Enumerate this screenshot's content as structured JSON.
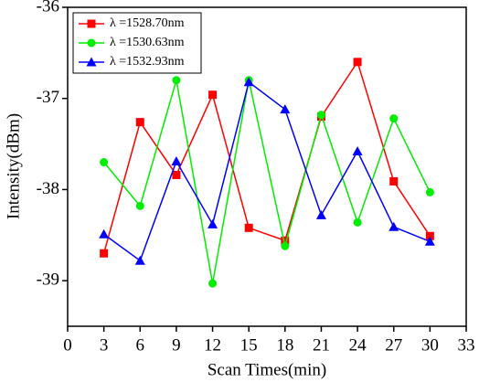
{
  "chart_data": {
    "type": "line",
    "xlabel": "Scan Times(min)",
    "ylabel": "Intensity(dBm)",
    "x": [
      3,
      6,
      9,
      12,
      15,
      18,
      21,
      24,
      27,
      30
    ],
    "series": [
      {
        "name": "λ =1528.70nm",
        "color": "#ff0000",
        "marker": "square",
        "values": [
          -38.7,
          -37.26,
          -37.84,
          -36.96,
          -38.42,
          -38.56,
          -37.2,
          -36.6,
          -37.91,
          -38.51
        ]
      },
      {
        "name": "λ =1530.63nm",
        "color": "#00ee00",
        "marker": "circle",
        "values": [
          -37.7,
          -38.18,
          -36.8,
          -39.03,
          -36.8,
          -38.62,
          -37.18,
          -38.36,
          -37.22,
          -38.03
        ]
      },
      {
        "name": "λ =1532.93nm",
        "color": "#0000ff",
        "marker": "triangle",
        "values": [
          -38.49,
          -38.78,
          -37.69,
          -38.38,
          -36.82,
          -37.12,
          -38.28,
          -37.58,
          -38.41,
          -38.57
        ]
      }
    ],
    "xlim": [
      0,
      33
    ],
    "xticks": [
      0,
      3,
      6,
      9,
      12,
      15,
      18,
      21,
      24,
      27,
      30,
      33
    ],
    "ylim": [
      -39.5,
      -36
    ],
    "yticks": [
      -39,
      -38,
      -37,
      -36
    ],
    "legend": "upper left"
  }
}
